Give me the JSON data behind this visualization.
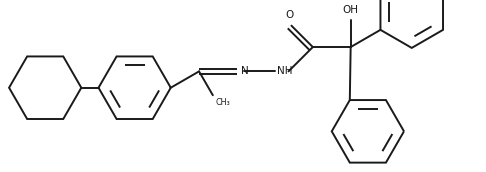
{
  "bg_color": "#ffffff",
  "line_color": "#1a1a1a",
  "line_width": 1.4,
  "figsize": [
    4.86,
    1.72
  ],
  "dpi": 100,
  "xlim": [
    0,
    14.0
  ],
  "ylim": [
    0,
    5.0
  ],
  "aspect": "equal"
}
